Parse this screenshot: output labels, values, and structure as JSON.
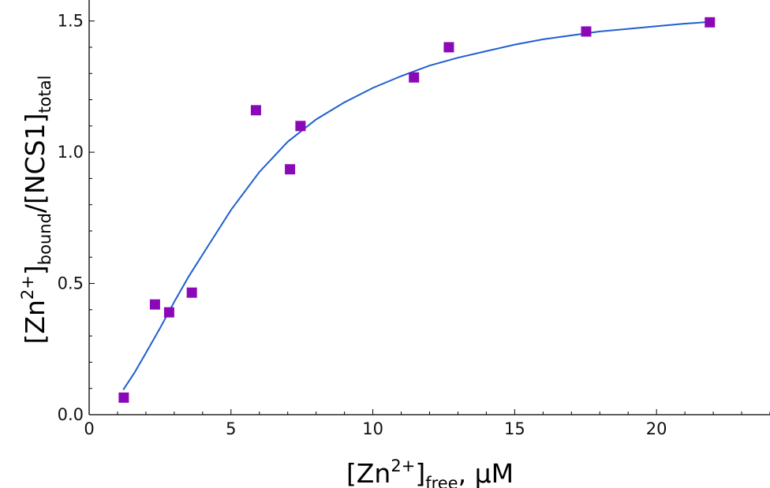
{
  "chart_data": {
    "type": "scatter",
    "xlabel": {
      "main": "[Zn",
      "sup": "2+",
      "mid": "]",
      "sub": "free",
      "tail": ", µM"
    },
    "ylabel": {
      "p1": "[Zn",
      "sup": "2+",
      "p2": "]",
      "sub1": "bound",
      "p3": "/[NCS1]",
      "sub2": "total"
    },
    "xlim": [
      0,
      24
    ],
    "ylim": [
      0,
      1.58
    ],
    "x_ticks": [
      0,
      5,
      10,
      15,
      20
    ],
    "x_tick_labels": [
      "0",
      "5",
      "10",
      "15",
      "20"
    ],
    "y_ticks": [
      0.0,
      0.5,
      1.0,
      1.5
    ],
    "y_tick_labels": [
      "0.0",
      "0.5",
      "1.0",
      "1.5"
    ],
    "grid": false,
    "series": [
      {
        "kind": "scatter",
        "marker": "square",
        "color": "#8b08b8",
        "x": [
          1.22,
          2.32,
          2.82,
          3.62,
          5.88,
          7.08,
          7.45,
          11.45,
          12.68,
          17.52,
          21.88
        ],
        "y": [
          0.065,
          0.42,
          0.39,
          0.465,
          1.16,
          0.935,
          1.1,
          1.285,
          1.4,
          1.46,
          1.495
        ]
      },
      {
        "kind": "line",
        "color": "#1f5fd0",
        "x": [
          1.2,
          1.6,
          2.0,
          2.5,
          3.0,
          3.5,
          4.0,
          5.0,
          6.0,
          7.0,
          8.0,
          9.0,
          10.0,
          11.0,
          12.0,
          13.0,
          14.0,
          15.0,
          16.0,
          17.0,
          18.0,
          19.0,
          20.0,
          21.0,
          21.8
        ],
        "y": [
          0.095,
          0.16,
          0.235,
          0.33,
          0.43,
          0.525,
          0.61,
          0.78,
          0.925,
          1.04,
          1.125,
          1.19,
          1.245,
          1.29,
          1.33,
          1.36,
          1.385,
          1.41,
          1.43,
          1.445,
          1.46,
          1.47,
          1.48,
          1.49,
          1.496
        ]
      }
    ]
  }
}
